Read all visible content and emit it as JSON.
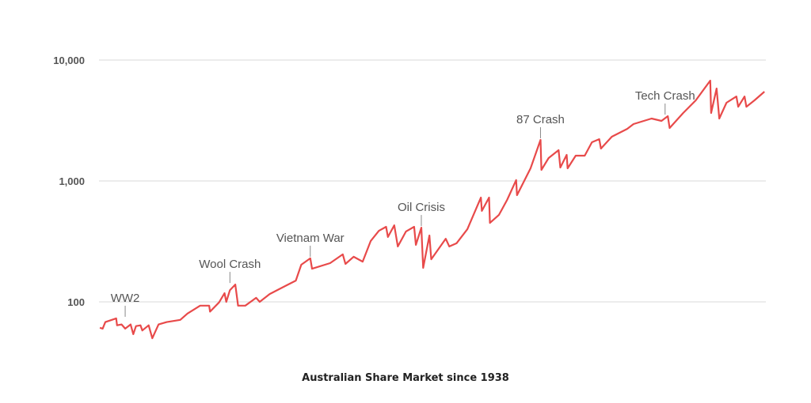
{
  "chart_data": {
    "type": "line",
    "title": "Australian Share Market since 1938",
    "xlabel": "",
    "ylabel": "",
    "y_scale": "log",
    "ylim": [
      40,
      12000
    ],
    "xlim": [
      1938,
      2011.9
    ],
    "y_ticks": [
      100,
      1000,
      10000
    ],
    "y_tick_labels": [
      "100",
      "1,000",
      "10,000"
    ],
    "grid": "horizontal",
    "legend": "none",
    "line_color": "#e84a4a",
    "series": [
      {
        "x": [
          1938.1,
          1938.4,
          1938.7,
          1939.9,
          1940.0,
          1940.5,
          1940.9,
          1941.5,
          1941.8,
          1942.1,
          1942.6,
          1942.8,
          1943.5,
          1943.9,
          1944.6,
          1945.5,
          1947.0,
          1947.8,
          1949.2,
          1950.2,
          1950.3,
          1951.3,
          1951.9,
          1952.1,
          1952.5,
          1953.1,
          1953.4,
          1954.2,
          1955.4,
          1955.8,
          1956.9,
          1958.6,
          1959.8,
          1960.4,
          1961.4,
          1961.6,
          1963.6,
          1965.0,
          1965.3,
          1966.2,
          1967.2,
          1968.1,
          1969.0,
          1969.8,
          1970.0,
          1970.7,
          1971.1,
          1972.0,
          1972.9,
          1973.1,
          1973.7,
          1973.9,
          1974.6,
          1974.8,
          1976.4,
          1976.8,
          1977.6,
          1978.8,
          1980.3,
          1980.4,
          1981.2,
          1981.3,
          1982.3,
          1983.2,
          1984.2,
          1984.3,
          1985.8,
          1986.9,
          1987.0,
          1987.8,
          1988.9,
          1989.1,
          1989.8,
          1989.9,
          1990.8,
          1991.8,
          1992.6,
          1993.4,
          1993.6,
          1994.8,
          1996.5,
          1997.2,
          1999.2,
          2000.3,
          2001.0,
          2001.2,
          2002.7,
          2004.1,
          2005.7,
          2005.8,
          2006.4,
          2006.7,
          2007.5,
          2008.6,
          2008.8,
          2009.5,
          2009.7,
          2010.6,
          2011.7
        ],
        "values": [
          61,
          60,
          68,
          73,
          64,
          65,
          60,
          65,
          54,
          63,
          64,
          58,
          64,
          50,
          65,
          68,
          71,
          80,
          93,
          93,
          83,
          99,
          118,
          100,
          125,
          139,
          93,
          93,
          108,
          100,
          116,
          135,
          150,
          203,
          229,
          188,
          209,
          247,
          206,
          236,
          215,
          319,
          387,
          418,
          344,
          430,
          287,
          382,
          418,
          296,
          411,
          191,
          354,
          225,
          333,
          287,
          305,
          399,
          729,
          565,
          729,
          450,
          524,
          697,
          1016,
          763,
          1273,
          2188,
          1235,
          1548,
          1799,
          1291,
          1643,
          1273,
          1619,
          1619,
          2089,
          2218,
          1853,
          2322,
          2698,
          2955,
          3282,
          3139,
          3434,
          2741,
          3648,
          4645,
          6761,
          3648,
          5821,
          3282,
          4436,
          5000,
          4111,
          5000,
          4111,
          4645,
          5479
        ]
      }
    ],
    "annotations": [
      {
        "label": "WW2",
        "x": 1940.9,
        "value": 73
      },
      {
        "label": "Wool Crash",
        "x": 1952.5,
        "value": 139
      },
      {
        "label": "Vietnam War",
        "x": 1961.4,
        "value": 229
      },
      {
        "label": "Oil Crisis",
        "x": 1973.7,
        "value": 411
      },
      {
        "label": "87 Crash",
        "x": 1986.9,
        "value": 2188
      },
      {
        "label": "Tech Crash",
        "x": 2000.7,
        "value": 3434
      }
    ]
  }
}
